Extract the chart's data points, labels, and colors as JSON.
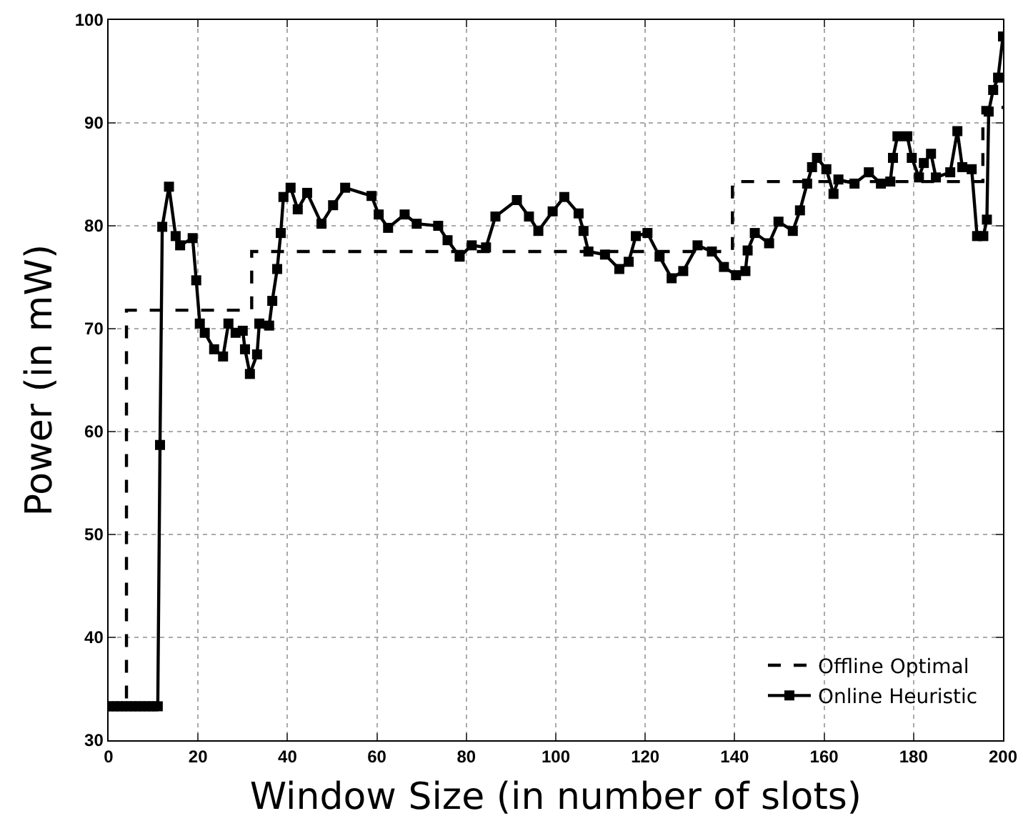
{
  "chart_data": {
    "type": "line",
    "xlabel": "Window Size (in number of slots)",
    "ylabel": "Power (in mW)",
    "xlim": [
      0,
      200
    ],
    "xticks": [
      0,
      20,
      40,
      60,
      80,
      100,
      120,
      140,
      160,
      180,
      200
    ],
    "ylim": [
      30,
      100
    ],
    "yticks": [
      30,
      40,
      50,
      60,
      70,
      80,
      90,
      100
    ],
    "grid": true,
    "legend": "bottom right",
    "series": [
      {
        "name": "Offline Optimal",
        "type": "step",
        "color": "#000000",
        "line_style": "dashed",
        "marker": "none",
        "x": [
          0,
          4,
          32,
          139.5,
          195.5,
          200
        ],
        "values": [
          33.3,
          71.8,
          77.5,
          84.3,
          91.5,
          91.5
        ]
      },
      {
        "name": "Online Heuristic",
        "color": "#000000",
        "line_style": "solid",
        "marker": "square",
        "x": [
          0,
          1,
          2,
          3,
          4,
          5,
          6,
          7,
          8,
          9,
          10,
          11,
          11.5,
          12,
          13.5,
          15,
          16,
          18.8,
          19.6,
          20.4,
          21.5,
          23.6,
          25.6,
          26.8,
          28.4,
          30,
          30.5,
          31.6,
          33.2,
          33.7,
          35.9,
          36.6,
          37.7,
          38.5,
          39.1,
          40.7,
          42.3,
          44.4,
          47.6,
          50.2,
          52.9,
          58.8,
          60.4,
          62.5,
          66.2,
          68.9,
          73.7,
          75.8,
          78.5,
          81.2,
          84.4,
          86.5,
          91.3,
          94,
          96.1,
          99.3,
          101.9,
          105.1,
          106.2,
          107.3,
          111,
          114.2,
          116.3,
          117.9,
          120.5,
          123.2,
          125.9,
          128.5,
          131.7,
          134.9,
          137.6,
          140.3,
          142.4,
          142.9,
          144.5,
          147.7,
          149.8,
          153,
          154.6,
          156.2,
          157.3,
          158.4,
          160.5,
          162.1,
          163.2,
          166.8,
          170,
          172.7,
          174.8,
          175.4,
          176.4,
          178.6,
          179.6,
          181.2,
          182.3,
          183.9,
          185,
          188.2,
          189.8,
          190.9,
          193,
          194.2,
          195.6,
          196.4,
          196.8,
          197.8,
          198.9,
          200
        ],
        "values": [
          33.3,
          33.3,
          33.3,
          33.3,
          33.3,
          33.3,
          33.3,
          33.3,
          33.3,
          33.3,
          33.3,
          33.3,
          58.7,
          79.9,
          83.8,
          79.0,
          78.1,
          78.8,
          74.7,
          70.5,
          69.6,
          68.0,
          67.3,
          70.5,
          69.6,
          69.8,
          68.0,
          65.6,
          67.5,
          70.5,
          70.3,
          72.7,
          75.8,
          79.3,
          82.8,
          83.7,
          81.6,
          83.2,
          80.2,
          82.0,
          83.7,
          82.9,
          81.1,
          79.8,
          81.1,
          80.2,
          80.0,
          78.6,
          77.0,
          78.1,
          77.9,
          80.9,
          82.5,
          80.9,
          79.5,
          81.4,
          82.8,
          81.2,
          79.5,
          77.5,
          77.2,
          75.8,
          76.5,
          79.0,
          79.3,
          77.0,
          74.9,
          75.6,
          78.1,
          77.5,
          76.0,
          75.2,
          75.6,
          77.6,
          79.3,
          78.3,
          80.4,
          79.5,
          81.5,
          84.1,
          85.7,
          86.6,
          85.5,
          83.1,
          84.5,
          84.1,
          85.2,
          84.1,
          84.3,
          86.6,
          88.7,
          88.7,
          86.6,
          84.7,
          86.1,
          87.0,
          84.7,
          85.2,
          89.2,
          85.7,
          85.5,
          79.0,
          79.0,
          80.6,
          91.1,
          93.2,
          94.4,
          98.4
        ]
      }
    ]
  }
}
